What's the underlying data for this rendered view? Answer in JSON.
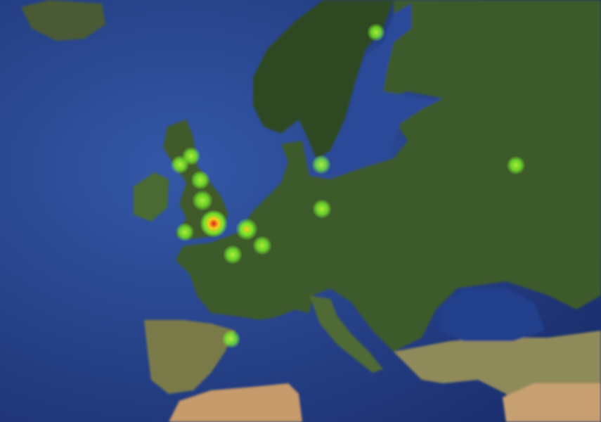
{
  "map": {
    "base_layer": "satellite",
    "overlay": "heatmap",
    "colors": {
      "ocean_deep": "#1b2f6e",
      "ocean_shallow": "#3458a8",
      "land": "#3e5a2b",
      "land_dark": "#2f4a22",
      "desert": "#c69a6a",
      "heat_low": "#7cff2a",
      "heat_mid": "#ffd21e",
      "heat_high": "#e0201a"
    },
    "heat_points": [
      {
        "intensity": 0.3
      },
      {
        "intensity": 0.35
      },
      {
        "intensity": 0.35
      },
      {
        "intensity": 0.4
      },
      {
        "intensity": 0.5
      },
      {
        "intensity": 1.0
      },
      {
        "intensity": 0.35
      },
      {
        "intensity": 0.6
      },
      {
        "intensity": 0.4
      },
      {
        "intensity": 0.4
      },
      {
        "intensity": 0.4
      },
      {
        "intensity": 0.4
      },
      {
        "intensity": 0.35
      },
      {
        "intensity": 0.35
      }
    ]
  }
}
